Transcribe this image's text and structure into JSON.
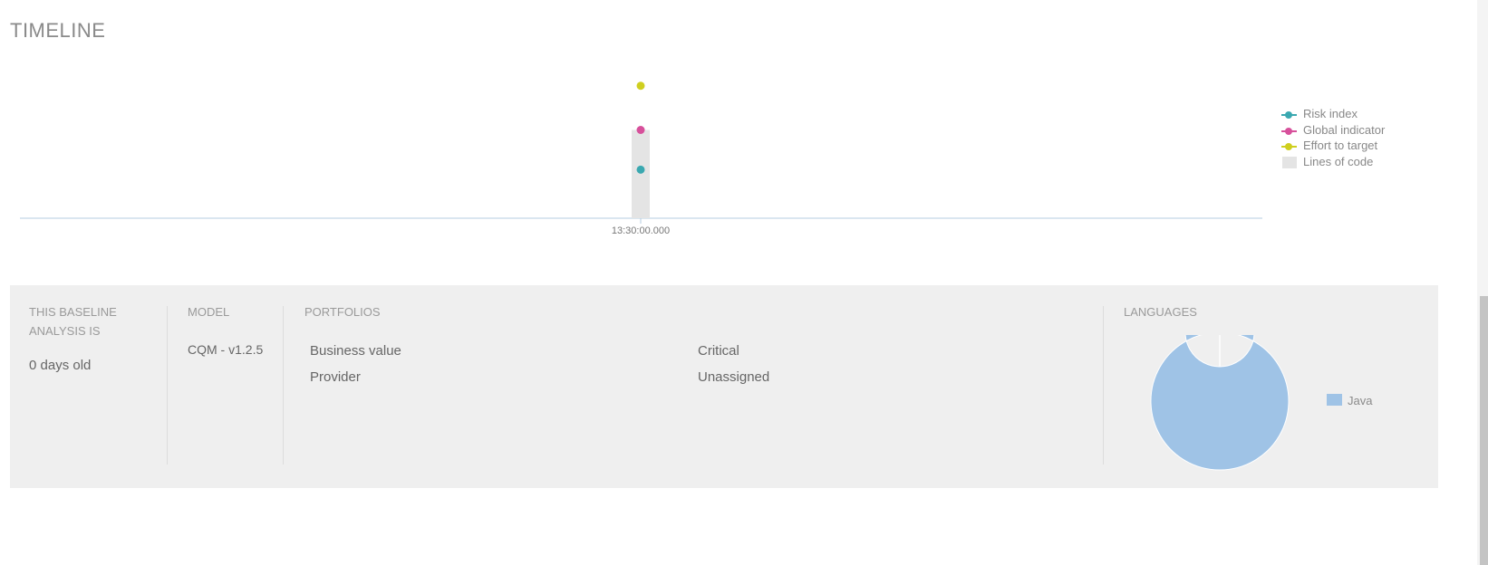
{
  "page": {
    "title": "TIMELINE"
  },
  "chart_data": [
    {
      "type": "line",
      "x": [
        "13:30:00.000"
      ],
      "series": [
        {
          "name": "Risk index",
          "values": [
            0.55
          ],
          "color": "#3aa8b0"
        },
        {
          "name": "Global indicator",
          "values": [
            1.0
          ],
          "color": "#d7509b"
        },
        {
          "name": "Effort to target",
          "values": [
            1.5
          ],
          "color": "#cfcf1f"
        },
        {
          "name": "Lines of code",
          "values": [
            1.0
          ],
          "color": "#e4e4e4",
          "kind": "bar"
        }
      ],
      "ylim": [
        0,
        1.6
      ],
      "legend": "right"
    },
    {
      "type": "pie",
      "donut": true,
      "categories": [
        "Java"
      ],
      "values": [
        100
      ],
      "colors": [
        "#9fc3e6"
      ],
      "legend": "right"
    }
  ],
  "summary": {
    "baseline_label": "THIS BASELINE ANALYSIS IS",
    "baseline_value": "0 days old",
    "model_label": "MODEL",
    "model_value": "CQM - v1.2.5",
    "portfolios_label": "PORTFOLIOS",
    "portfolios": [
      {
        "name": "Business value",
        "value": "Critical"
      },
      {
        "name": "Provider",
        "value": "Unassigned"
      }
    ],
    "languages_label": "LANGUAGES",
    "languages_legend": "Java"
  },
  "colors": {
    "axis": "#b6cde0",
    "panel": "#efefef",
    "java": "#9fc3e6"
  }
}
